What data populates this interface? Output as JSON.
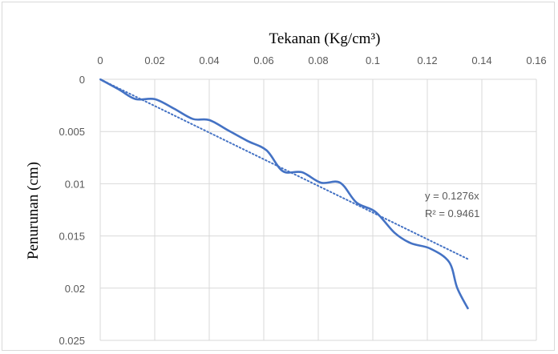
{
  "chart_data": {
    "type": "line",
    "xlabel": "Tekanan (Kg/cm³)",
    "ylabel": "Penurunan (cm)",
    "xlim": [
      0,
      0.16
    ],
    "ylim": [
      0,
      0.025
    ],
    "y_inverted": true,
    "x_axis_position": "top",
    "grid": true,
    "x_ticks": [
      "0",
      "0.02",
      "0.04",
      "0.06",
      "0.08",
      "0.1",
      "0.12",
      "0.14",
      "0.16"
    ],
    "y_ticks": [
      "0",
      "0.005",
      "0.01",
      "0.015",
      "0.02",
      "0.025"
    ],
    "series": [
      {
        "color": "#4472c4",
        "style": "smooth",
        "x": [
          0,
          0.007,
          0.013,
          0.02,
          0.027,
          0.034,
          0.04,
          0.047,
          0.054,
          0.061,
          0.067,
          0.074,
          0.081,
          0.088,
          0.094,
          0.101,
          0.108,
          0.114,
          0.121,
          0.128,
          0.131,
          0.135
        ],
        "y": [
          0,
          0.001,
          0.0019,
          0.0019,
          0.0028,
          0.0038,
          0.0039,
          0.0049,
          0.0059,
          0.0068,
          0.0088,
          0.0089,
          0.0099,
          0.0099,
          0.0118,
          0.0127,
          0.0147,
          0.0157,
          0.0162,
          0.0175,
          0.02,
          0.022
        ]
      }
    ],
    "trendline": {
      "type": "linear",
      "style": "dotted",
      "color": "#4472c4",
      "slope": 0.1276,
      "x_range": [
        0,
        0.135
      ],
      "equation": "y = 0.1276x",
      "r_squared": "R² = 0.9461"
    }
  }
}
